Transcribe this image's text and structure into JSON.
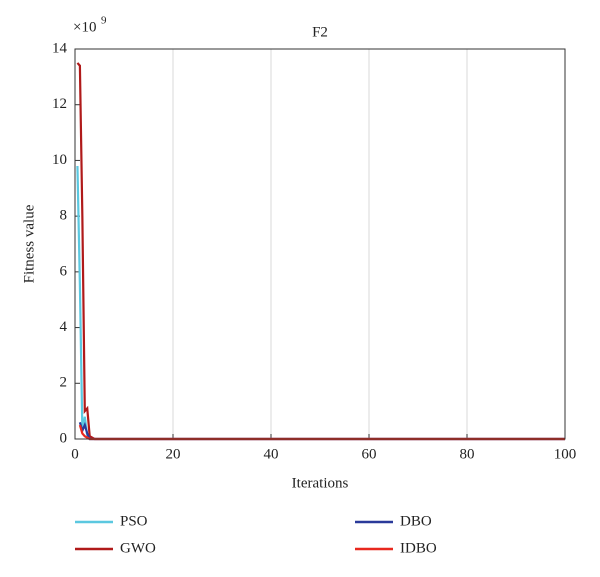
{
  "chart_data": {
    "type": "line",
    "title": "F2",
    "x_label": "Iterations",
    "y_label": "Fitness value",
    "y_multiplier": {
      "base": "×10",
      "exponent": "9"
    },
    "xlim": [
      0,
      100
    ],
    "xticks": [
      0,
      20,
      40,
      60,
      80,
      100
    ],
    "ylim": [
      0,
      14
    ],
    "yticks": [
      0,
      2,
      4,
      6,
      8,
      10,
      12,
      14
    ],
    "grid": "x",
    "series": [
      {
        "name": "PSO",
        "color": "#5bc8e0",
        "x": [
          0.5,
          1,
          1.5,
          2,
          2.5,
          3,
          4,
          100
        ],
        "values": [
          9.8,
          5.5,
          0.3,
          0.8,
          0.1,
          0,
          0,
          0
        ]
      },
      {
        "name": "GWO",
        "color": "#b01a1a",
        "x": [
          0.5,
          1,
          1.5,
          2,
          2.5,
          3,
          4,
          100
        ],
        "values": [
          13.5,
          13.4,
          8,
          1,
          1.1,
          0.1,
          0,
          0
        ]
      },
      {
        "name": "DBO",
        "color": "#2a3a9a",
        "x": [
          1,
          1.5,
          2,
          2.5,
          3,
          100
        ],
        "values": [
          0.6,
          0.3,
          0.5,
          0.2,
          0,
          0
        ]
      },
      {
        "name": "IDBO",
        "color": "#e8281e",
        "x": [
          1,
          1.5,
          2,
          3,
          100
        ],
        "values": [
          0.5,
          0.2,
          0.1,
          0,
          0
        ]
      }
    ]
  }
}
